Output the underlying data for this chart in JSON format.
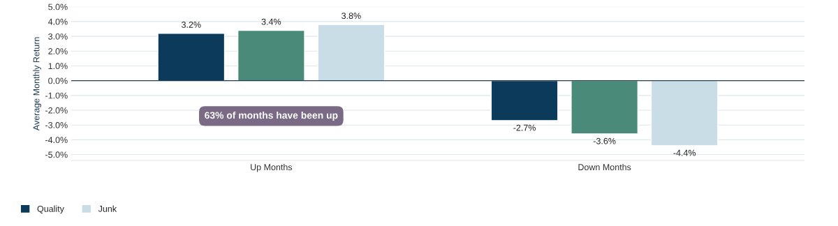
{
  "chart_data": {
    "type": "bar",
    "ylabel": "Average Monthly Return",
    "categories": [
      "Up Months",
      "Down Months"
    ],
    "series": [
      {
        "name": "Quality",
        "color": "#0b3a5a",
        "values": [
          3.2,
          -2.7
        ],
        "value_labels": [
          "3.2%",
          "-2.7%"
        ]
      },
      {
        "color": "#4a8a78",
        "values": [
          3.4,
          -3.6
        ],
        "value_labels": [
          "3.4%",
          "-3.6%"
        ]
      },
      {
        "name": "Junk",
        "color": "#c9dde6",
        "values": [
          3.8,
          -4.4
        ],
        "value_labels": [
          "3.8%",
          "-4.4%"
        ]
      }
    ],
    "ylim": [
      -5.4,
      5
    ],
    "yticks": [
      {
        "value": -5,
        "label": "-5.0%"
      },
      {
        "value": -4,
        "label": "-4.0%"
      },
      {
        "value": -3,
        "label": "-3.0%"
      },
      {
        "value": -2,
        "label": "-2.0%"
      },
      {
        "value": -1,
        "label": "-1.0%"
      },
      {
        "value": 0,
        "label": "0.0%"
      },
      {
        "value": 1,
        "label": "1.0%"
      },
      {
        "value": 2,
        "label": "2.0%"
      },
      {
        "value": 3,
        "label": "3.0%"
      },
      {
        "value": 4,
        "label": "4.0%"
      },
      {
        "value": 5,
        "label": "5.0%"
      }
    ],
    "grid": "y",
    "legend": "bottom left",
    "annotations": [
      "63% of months have been up"
    ]
  }
}
